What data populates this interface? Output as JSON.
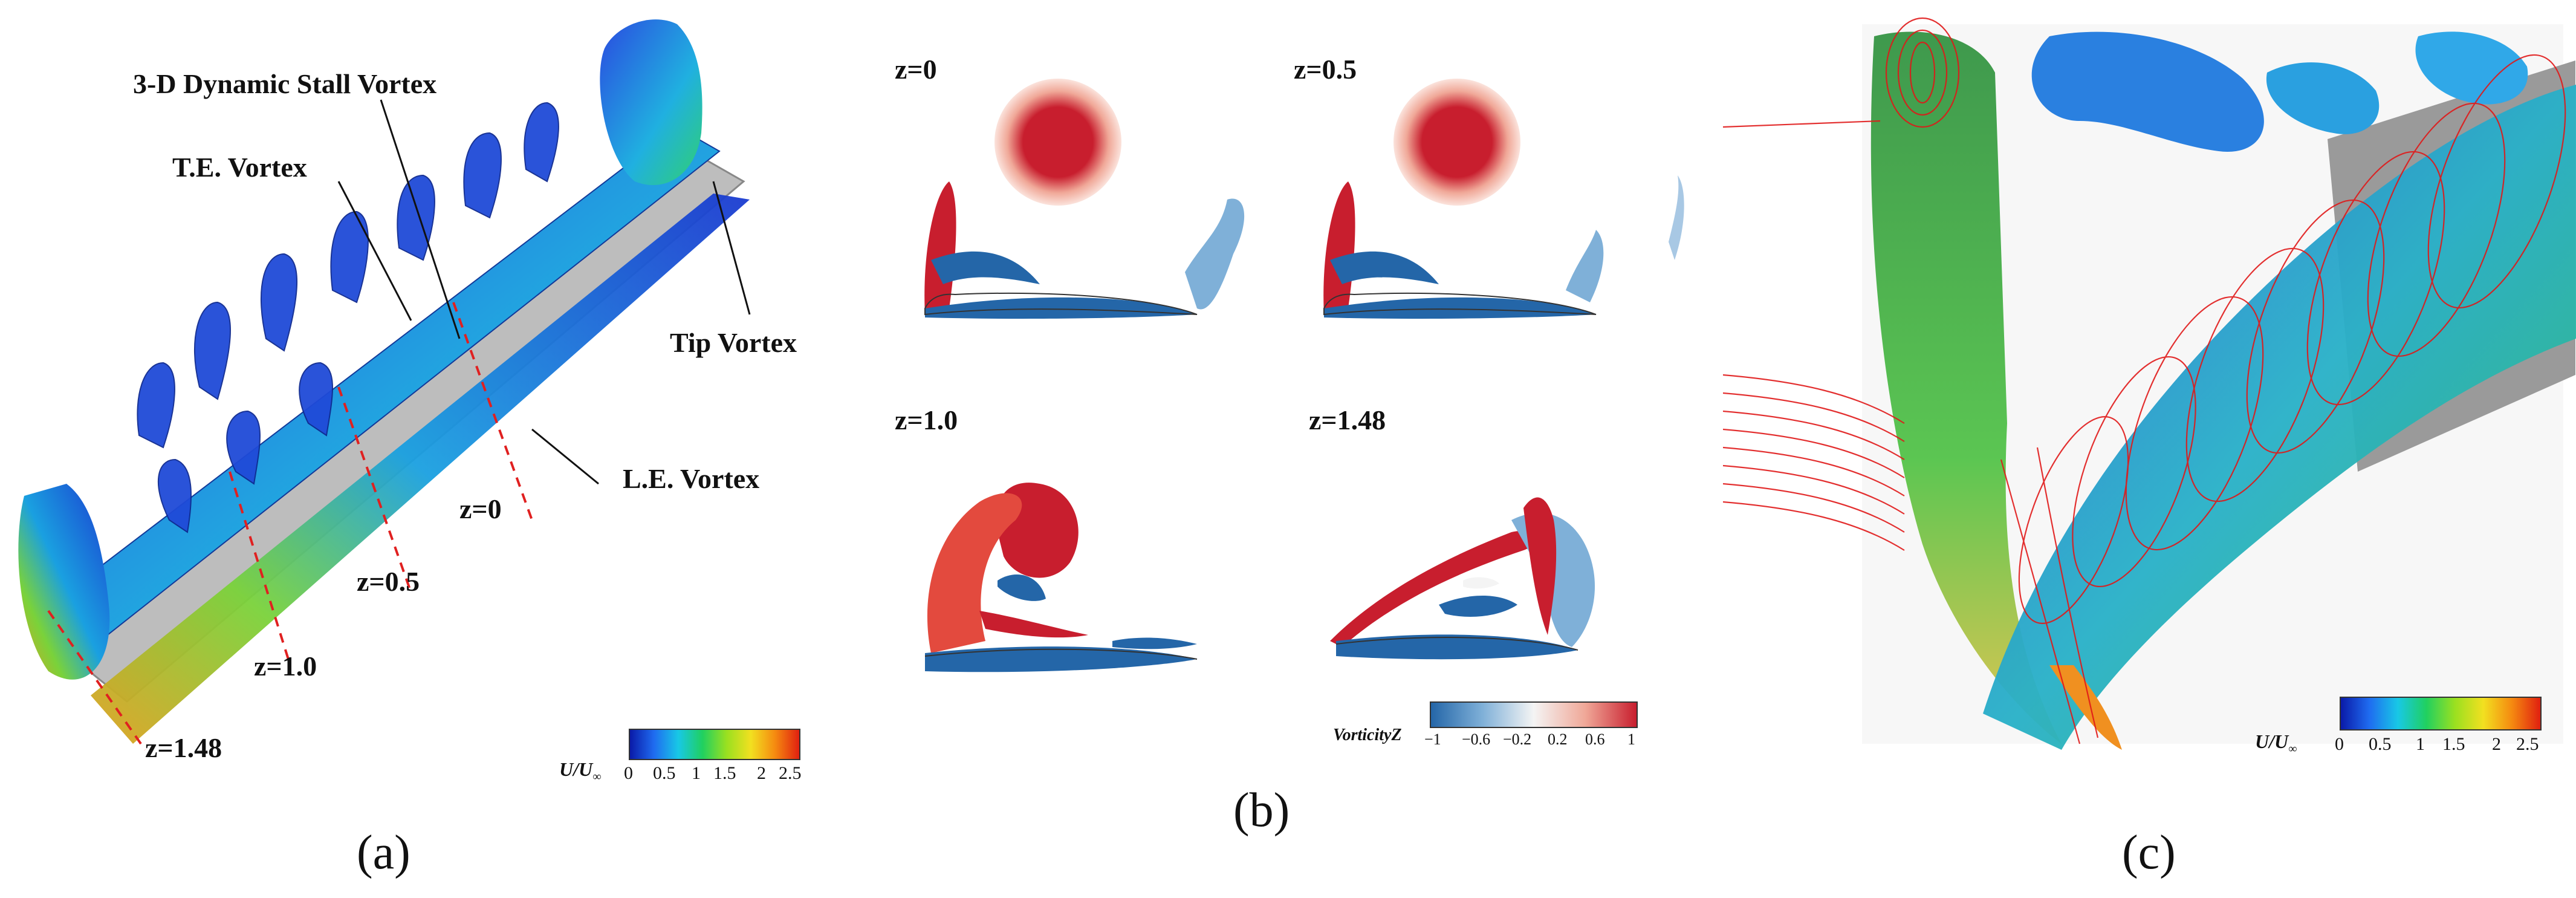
{
  "panel_a": {
    "caption": "(a)",
    "annotations": {
      "dsv": "3-D Dynamic Stall Vortex",
      "te": "T.E. Vortex",
      "tip": "Tip Vortex",
      "le": "L.E. Vortex"
    },
    "z_labels": [
      "z=0",
      "z=0.5",
      "z=1.0",
      "z=1.48"
    ],
    "colorbar": {
      "label_main": "U/U",
      "label_sub": "∞",
      "ticks": [
        "0",
        "0.5",
        "1",
        "1.5",
        "2",
        "2.5"
      ]
    }
  },
  "panel_b": {
    "caption": "(b)",
    "slice_labels": [
      "z=0",
      "z=0.5",
      "z=1.0",
      "z=1.48"
    ],
    "colorbar": {
      "label": "VorticityZ",
      "ticks": [
        "−1",
        "−0.6",
        "−0.2",
        "0.2",
        "0.6",
        "1"
      ]
    }
  },
  "panel_c": {
    "caption": "(c)",
    "colorbar": {
      "label_main": "U/U",
      "label_sub": "∞",
      "ticks": [
        "0",
        "0.5",
        "1",
        "1.5",
        "2",
        "2.5"
      ]
    }
  },
  "colors": {
    "velocity_scale": [
      "#0a1aa8",
      "#1f6cf0",
      "#18c8e6",
      "#20d060",
      "#9ae020",
      "#f2e020",
      "#f58a10",
      "#e02010"
    ],
    "vorticity_scale": [
      "#2466a8",
      "#7fb0d8",
      "#f4f4f4",
      "#f0a898",
      "#c81e2e"
    ]
  }
}
